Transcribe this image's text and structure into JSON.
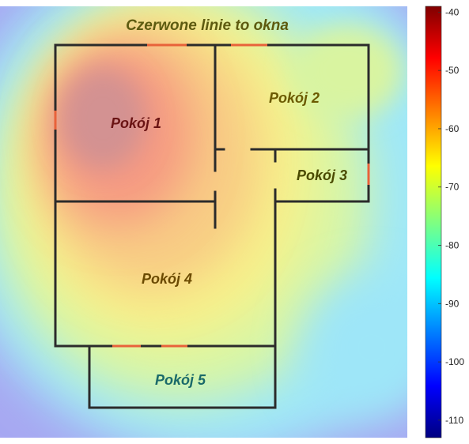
{
  "title": "Czerwone linie to okna",
  "rooms": [
    {
      "label": "Pokój 1",
      "color": "#6a1414"
    },
    {
      "label": "Pokój 2",
      "color": "#6b5a00"
    },
    {
      "label": "Pokój 3",
      "color": "#4a4a00"
    },
    {
      "label": "Pokój 4",
      "color": "#6b4a00"
    },
    {
      "label": "Pokój 5",
      "color": "#1a6a6a"
    }
  ],
  "colorbar": {
    "ticks": [
      "-40",
      "-50",
      "-60",
      "-70",
      "-80",
      "-90",
      "-100",
      "-110"
    ],
    "min": -113,
    "max": -39,
    "colormap": "jet"
  },
  "colors": {
    "wall": "#2b2b2b",
    "window": "#e8623a",
    "title": "#5e5b10"
  }
}
